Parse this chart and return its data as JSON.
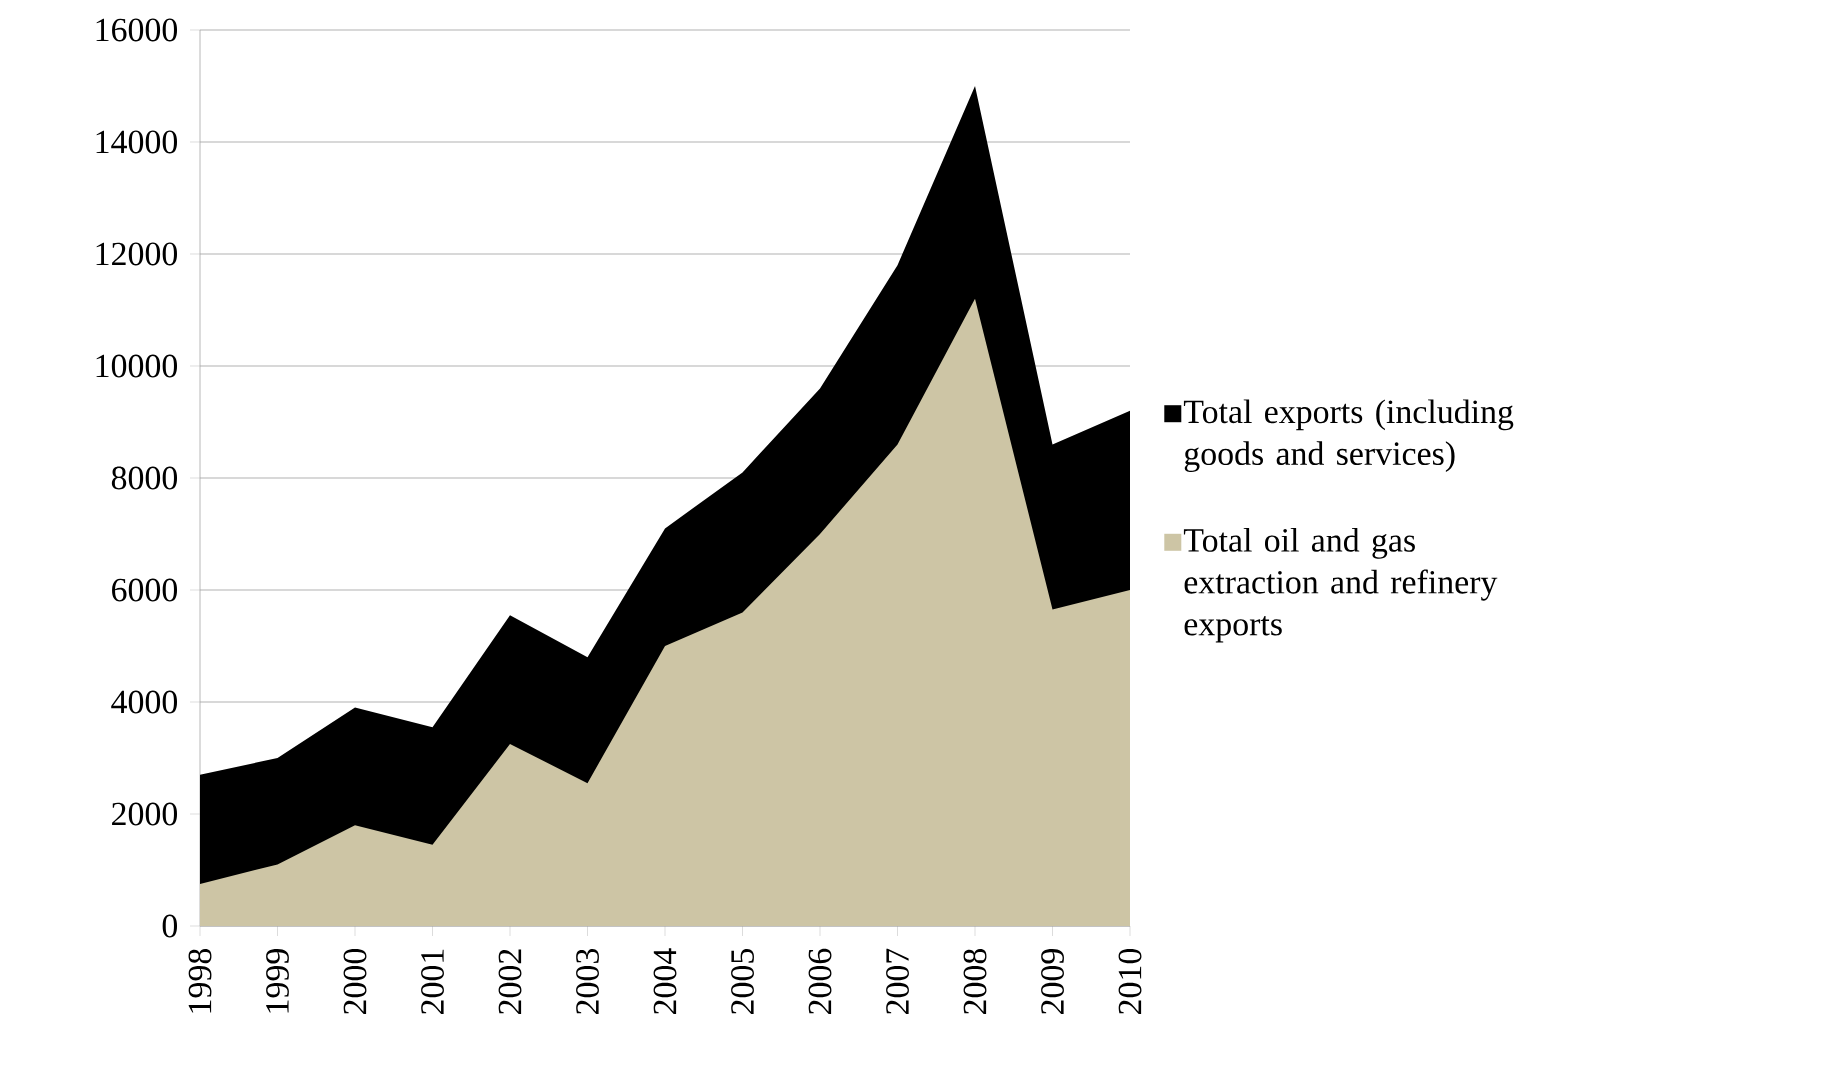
{
  "chart_data": {
    "type": "area",
    "categories": [
      "1998",
      "1999",
      "2000",
      "2001",
      "2002",
      "2003",
      "2004",
      "2005",
      "2006",
      "2007",
      "2008",
      "2009",
      "2010"
    ],
    "series": [
      {
        "name": "Total exports (including goods and services)",
        "color": "#000000",
        "values": [
          2700,
          3000,
          3900,
          3550,
          5550,
          4800,
          7100,
          8100,
          9600,
          11800,
          15000,
          8600,
          9200
        ]
      },
      {
        "name": "Total oil and gas extraction and refinery exports",
        "color": "#cdc5a5",
        "values": [
          750,
          1100,
          1800,
          1450,
          3250,
          2550,
          5000,
          5600,
          7000,
          8600,
          11200,
          5650,
          6000
        ]
      }
    ],
    "ylim": [
      0,
      16000
    ],
    "yticks": [
      0,
      2000,
      4000,
      6000,
      8000,
      10000,
      12000,
      14000,
      16000
    ],
    "grid": "y",
    "legend": "right"
  }
}
